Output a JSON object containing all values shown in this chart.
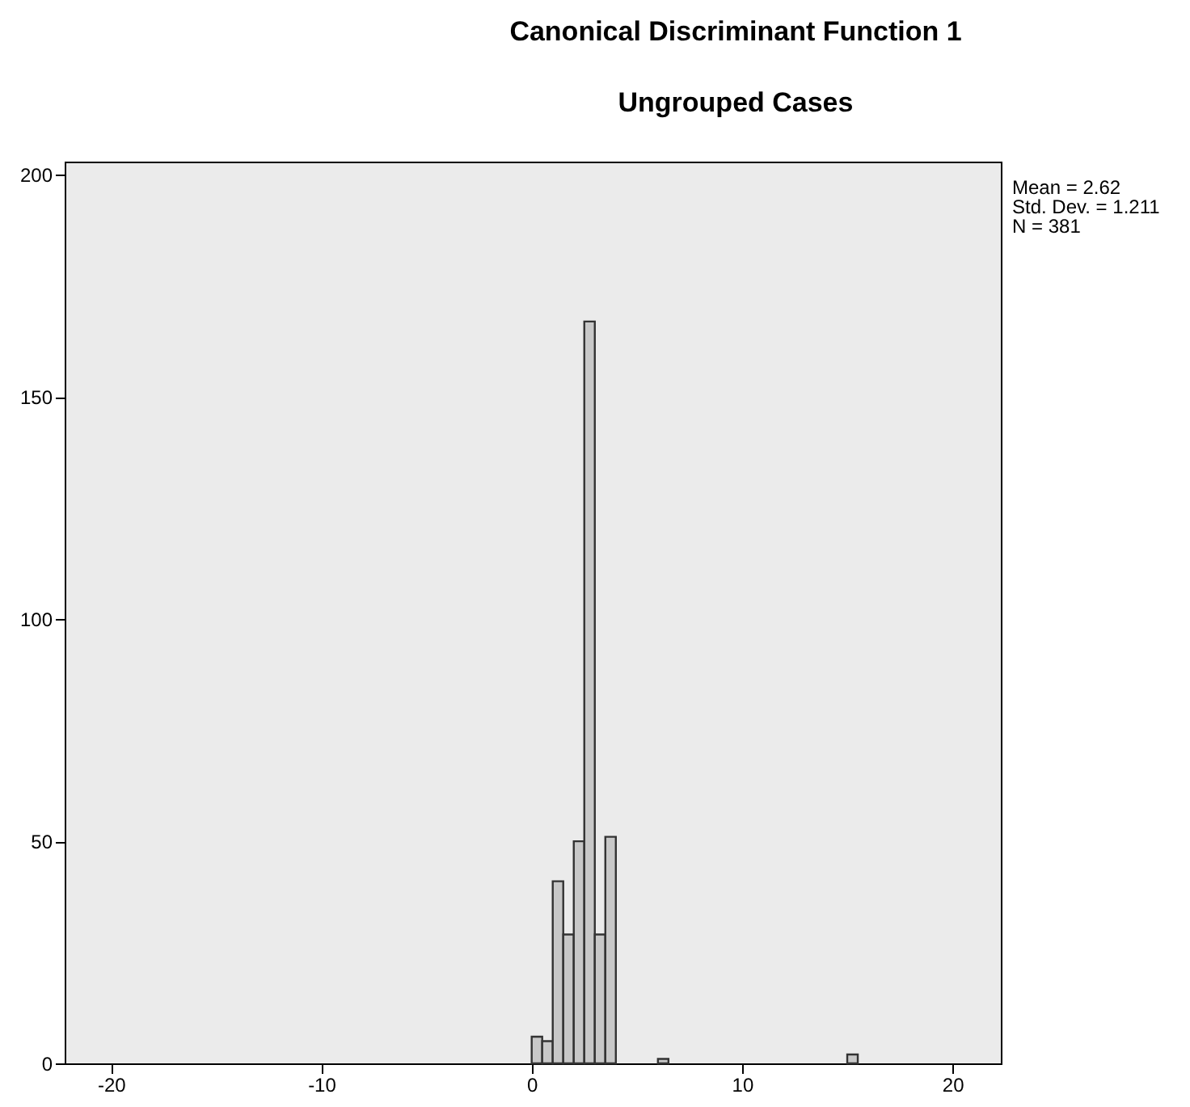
{
  "chart_data": {
    "type": "histogram",
    "title": "Canonical Discriminant Function 1",
    "subtitle": "Ungrouped Cases",
    "annotations": [
      "Mean = 2.62",
      "Std. Dev. = 1.211",
      "N = 381"
    ],
    "bins": [
      0,
      0.5,
      1,
      1.5,
      2,
      2.5,
      3,
      3.5,
      4,
      4.5,
      5,
      5.5,
      6,
      6.5,
      7,
      7.5,
      8,
      8.5,
      9,
      9.5,
      10,
      10.5,
      11,
      11.5,
      12,
      12.5,
      13,
      13.5,
      14,
      14.5,
      15,
      15.5
    ],
    "values": [
      6,
      5,
      41,
      29,
      50,
      167,
      29,
      51,
      0,
      0,
      0,
      0,
      1,
      0,
      0,
      0,
      0,
      0,
      0,
      0,
      0,
      0,
      0,
      0,
      0,
      0,
      0,
      0,
      0,
      0,
      2
    ],
    "color": "#c8c8c8",
    "xlim": [
      -22.2,
      22.3
    ],
    "xticks": [
      -20,
      -10,
      0,
      10,
      20
    ],
    "ylim": [
      0,
      203
    ],
    "yticks": [
      0,
      50,
      100,
      150,
      200
    ],
    "grid": false
  }
}
